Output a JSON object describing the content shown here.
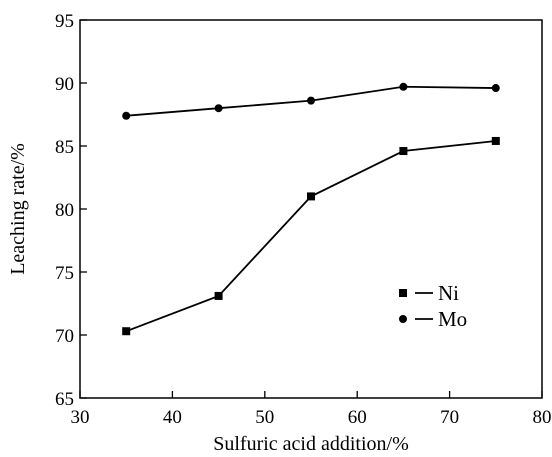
{
  "chart_data": {
    "type": "line",
    "xlabel": "Sulfuric acid addition/%",
    "ylabel": "Leaching rate/%",
    "xlim": [
      30,
      80
    ],
    "ylim": [
      65,
      95
    ],
    "xticks": [
      30,
      40,
      50,
      60,
      70,
      80
    ],
    "yticks": [
      65,
      70,
      75,
      80,
      85,
      90,
      95
    ],
    "grid": false,
    "legend_position": "center-right",
    "x": [
      35,
      45,
      55,
      65,
      75
    ],
    "series": [
      {
        "name": "Ni",
        "marker": "square",
        "color": "#000000",
        "values": [
          70.3,
          73.1,
          81.0,
          84.6,
          85.4
        ]
      },
      {
        "name": "Mo",
        "marker": "circle",
        "color": "#000000",
        "values": [
          87.4,
          88.0,
          88.6,
          89.7,
          89.6
        ]
      }
    ]
  }
}
